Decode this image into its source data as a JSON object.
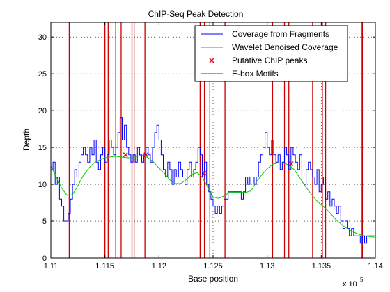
{
  "chart_data": {
    "type": "line",
    "title": "ChIP-Seq Peak Detection",
    "xlabel": "Base position",
    "ylabel": "Depth",
    "x_multiplier_label": "x 10",
    "x_multiplier_exp": "5",
    "xlim": [
      111000,
      114000
    ],
    "ylim": [
      0,
      32
    ],
    "grid": true,
    "legend_placement": "top-right",
    "x_ticks": [
      111000,
      111500,
      112000,
      112500,
      113000,
      113500,
      114000
    ],
    "x_tick_labels": [
      "1.11",
      "1.115",
      "1.12",
      "1.125",
      "1.13",
      "1.135",
      "1.14"
    ],
    "y_ticks": [
      0,
      5,
      10,
      15,
      20,
      25,
      30
    ],
    "y_tick_labels": [
      "0",
      "5",
      "10",
      "15",
      "20",
      "25",
      "30"
    ],
    "colors": {
      "coverage": "#0000ff",
      "denoised": "#00cc00",
      "peaks": "#ff0000",
      "motifs": "#cc0000"
    },
    "series": [
      {
        "name": "Coverage from Fragments",
        "style": "step",
        "x": [
          111000,
          111020,
          111040,
          111060,
          111080,
          111100,
          111120,
          111140,
          111160,
          111180,
          111200,
          111220,
          111240,
          111260,
          111280,
          111300,
          111320,
          111340,
          111360,
          111380,
          111400,
          111420,
          111440,
          111460,
          111480,
          111500,
          111520,
          111540,
          111560,
          111580,
          111600,
          111620,
          111640,
          111660,
          111680,
          111700,
          111720,
          111740,
          111760,
          111780,
          111800,
          111820,
          111840,
          111860,
          111880,
          111900,
          111920,
          111940,
          111960,
          111980,
          112000,
          112020,
          112040,
          112060,
          112080,
          112100,
          112120,
          112140,
          112160,
          112180,
          112200,
          112220,
          112240,
          112260,
          112280,
          112300,
          112320,
          112340,
          112360,
          112380,
          112400,
          112420,
          112440,
          112460,
          112480,
          112500,
          112520,
          112540,
          112560,
          112580,
          112600,
          112620,
          112640,
          112660,
          112680,
          112700,
          112720,
          112740,
          112760,
          112780,
          112800,
          112820,
          112840,
          112860,
          112880,
          112900,
          112920,
          112940,
          112960,
          112980,
          113000,
          113020,
          113040,
          113060,
          113080,
          113100,
          113120,
          113140,
          113160,
          113180,
          113200,
          113220,
          113240,
          113260,
          113280,
          113300,
          113320,
          113340,
          113360,
          113380,
          113400,
          113420,
          113440,
          113460,
          113480,
          113500,
          113520,
          113540,
          113560,
          113580,
          113600,
          113620,
          113640,
          113660,
          113680,
          113700,
          113720,
          113740,
          113760,
          113780,
          113800,
          113820,
          113840,
          113860,
          113880,
          113900,
          113920,
          113940,
          113960,
          113980
        ],
        "y": [
          12,
          13,
          10,
          11,
          8,
          7,
          5,
          5,
          6,
          8,
          10,
          12,
          11,
          13,
          14,
          15,
          14,
          13,
          15,
          14,
          16,
          13,
          12,
          14,
          15,
          13,
          14,
          16,
          15,
          14,
          15,
          17,
          19,
          16,
          18,
          15,
          14,
          13,
          14,
          13,
          15,
          14,
          13,
          14,
          15,
          14,
          13,
          15,
          17,
          18,
          16,
          14,
          12,
          11,
          13,
          12,
          10,
          12,
          11,
          13,
          12,
          11,
          10,
          12,
          13,
          11,
          12,
          13,
          15,
          14,
          11,
          13,
          10,
          9,
          8,
          7,
          6,
          7,
          6,
          7,
          8,
          8,
          9,
          9,
          9,
          9,
          9,
          9,
          8,
          9,
          11,
          10,
          11,
          11,
          10,
          11,
          13,
          14,
          15,
          17,
          15,
          14,
          16,
          14,
          13,
          14,
          12,
          13,
          15,
          14,
          12,
          15,
          14,
          13,
          12,
          14,
          11,
          10,
          12,
          13,
          12,
          11,
          10,
          12,
          9,
          10,
          11,
          8,
          9,
          7,
          8,
          7,
          6,
          7,
          5,
          4,
          5,
          4,
          3,
          4,
          3,
          3,
          3,
          2,
          3,
          2,
          3,
          3,
          3,
          3
        ]
      },
      {
        "name": "Wavelet Denoised Coverage",
        "style": "line",
        "x": [
          111000,
          111100,
          111150,
          111200,
          111250,
          111300,
          111350,
          111400,
          111450,
          111500,
          111550,
          111600,
          111650,
          111700,
          111750,
          111800,
          111850,
          111900,
          111950,
          112000,
          112050,
          112100,
          112150,
          112200,
          112250,
          112300,
          112350,
          112400,
          112450,
          112500,
          112550,
          112600,
          112650,
          112700,
          112750,
          112800,
          112850,
          112900,
          112950,
          113000,
          113050,
          113100,
          113150,
          113200,
          113250,
          113300,
          113350,
          113400,
          113450,
          113500,
          113550,
          113600,
          113650,
          113700,
          113750,
          113800,
          113850,
          113900,
          113950,
          114000
        ],
        "y": [
          12.5,
          9.5,
          8.5,
          8.6,
          9.8,
          11.2,
          12.2,
          12.9,
          13.3,
          13.6,
          13.7,
          13.8,
          13.7,
          13.6,
          13.6,
          13.8,
          13.9,
          13.6,
          13.0,
          12.2,
          11.5,
          10.6,
          10.1,
          10.1,
          10.6,
          11.3,
          11.6,
          11.0,
          9.6,
          8.3,
          8.1,
          8.4,
          8.9,
          8.9,
          8.9,
          8.9,
          9.1,
          10.3,
          11.3,
          12.1,
          12.7,
          12.9,
          12.9,
          12.6,
          12.0,
          10.9,
          9.8,
          8.8,
          7.9,
          7.2,
          6.6,
          5.8,
          5.0,
          4.4,
          3.9,
          3.5,
          3.2,
          3.0,
          2.9,
          2.8
        ]
      },
      {
        "name": "Putative ChIP peaks",
        "style": "marker",
        "x": [
          111690,
          111880,
          112420,
          113220
        ],
        "y": [
          14.0,
          14.0,
          11.5,
          12.8
        ]
      },
      {
        "name": "E-box Motifs",
        "style": "vline",
        "x": [
          111170,
          111500,
          111530,
          111600,
          111650,
          111750,
          111770,
          111870,
          112380,
          112420,
          112470,
          112610,
          113050,
          113160,
          113200,
          113420,
          113510,
          113540,
          113870,
          113880
        ]
      }
    ]
  }
}
